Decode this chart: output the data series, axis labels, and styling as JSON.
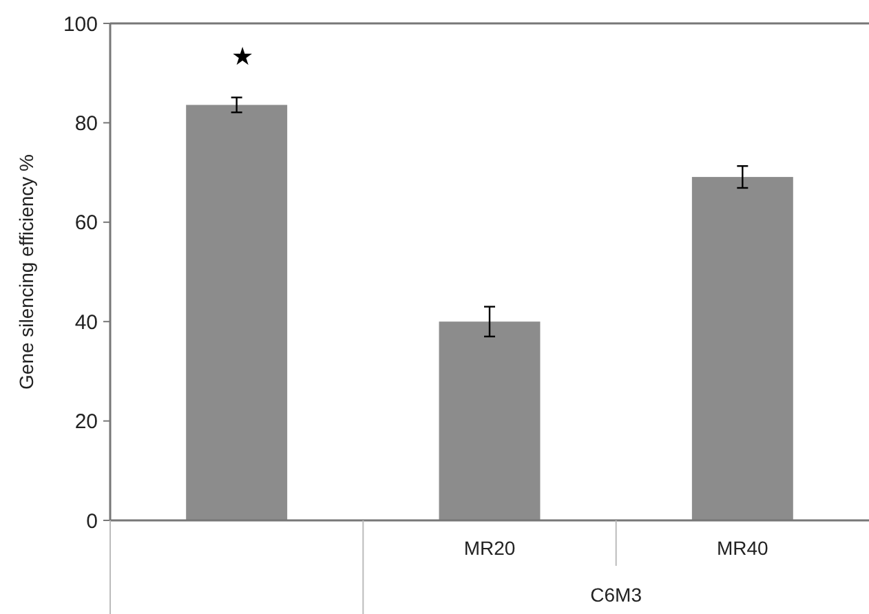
{
  "chart_data": {
    "type": "bar",
    "ylabel": "Gene silencing efficiency %",
    "categories": [
      null,
      "MR20",
      "MR40"
    ],
    "values": [
      83.6,
      40,
      69.1
    ],
    "errors": [
      1.5,
      3,
      2.2
    ],
    "color": "#8c8c8c",
    "ylim": [
      0,
      100
    ],
    "yticks": [
      0,
      20,
      40,
      60,
      80,
      100
    ],
    "annotations": [
      "★",
      "C6M3"
    ]
  }
}
